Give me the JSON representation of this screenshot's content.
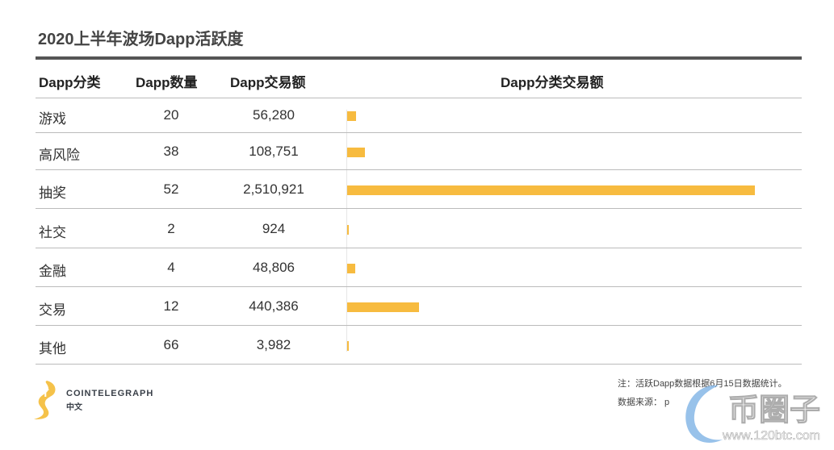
{
  "title": "2020上半年波场Dapp活跃度",
  "headers": [
    "Dapp分类",
    "Dapp数量",
    "Dapp交易额",
    "Dapp分类交易额"
  ],
  "chart_data": {
    "type": "table",
    "title": "2020上半年波场Dapp活跃度",
    "categories": [
      "游戏",
      "高风险",
      "抽奖",
      "社交",
      "金融",
      "交易",
      "其他"
    ],
    "counts": [
      20,
      38,
      52,
      2,
      4,
      12,
      66
    ],
    "count_labels": [
      "20",
      "38",
      "52",
      "2",
      "4",
      "12",
      "66"
    ],
    "values": [
      56280,
      108751,
      2510921,
      924,
      48806,
      440386,
      3982
    ],
    "value_labels": [
      "56,280",
      "108,751",
      "2,510,921",
      "924",
      "48,806",
      "440,386",
      "3,982"
    ],
    "bar_color": "#f7bb3f"
  },
  "footer": {
    "note": "注：活跃Dapp数据根据6月15日数据统计。",
    "source": "数据来源：   p",
    "brand": "COINTELEGRAPH",
    "brand_sub": "中文",
    "watermark": "币圈子",
    "watermark_url": "www.120btc.com"
  }
}
